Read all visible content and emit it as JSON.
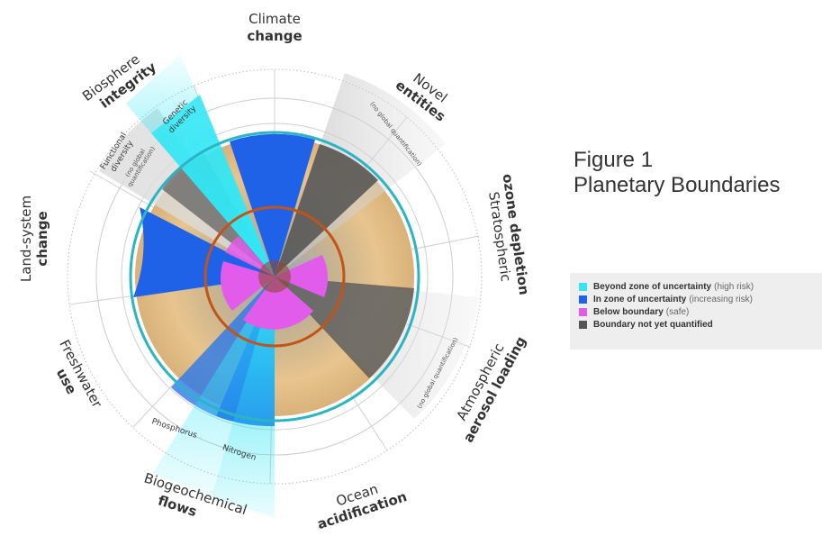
{
  "figure": {
    "number": "Figure 1",
    "title": "Planetary Boundaries"
  },
  "colors": {
    "beyond": "#33e6f5",
    "uncertainty": "#1f62e8",
    "safe": "#e25cec",
    "not_quantified": "#555555",
    "boundary_ring": "#c0541a",
    "outer_ring": "#2bb4c4"
  },
  "legend": [
    {
      "key": "beyond",
      "bold": "Beyond zone of uncertainty",
      "note": "(high risk)"
    },
    {
      "key": "uncertainty",
      "bold": "In zone of uncertainty",
      "note": "(increasing risk)"
    },
    {
      "key": "safe",
      "bold": "Below boundary",
      "note": "(safe)"
    },
    {
      "key": "not_quantified",
      "bold": "Boundary not yet quantified",
      "note": ""
    }
  ],
  "boundaries": {
    "climate_change": {
      "line1": "Climate",
      "line2": "change"
    },
    "novel_entities": {
      "line1": "Novel",
      "line2": "entities",
      "note": "(no global quantification)"
    },
    "ozone_depletion": {
      "line1": "Stratospheric",
      "line2": "ozone depletion"
    },
    "aerosol_loading": {
      "line1": "Atmospheric",
      "line2": "aerosol loading",
      "note": "(no global quantification)"
    },
    "ocean_acidification": {
      "line1": "Ocean",
      "line2": "acidification"
    },
    "biogeochemical_flows": {
      "line1": "Biogeochemical",
      "line2": "flows",
      "sub_a": "Phosphorus",
      "sub_b": "Nitrogen"
    },
    "freshwater_use": {
      "line1": "Freshwater",
      "line2": "use"
    },
    "land_system_change": {
      "line1": "Land-system",
      "line2": "change"
    },
    "biosphere_integrity": {
      "line1": "Biosphere",
      "line2": "integrity",
      "sub_a_1": "Genetic",
      "sub_a_2": "diversity",
      "sub_b_1": "Functional",
      "sub_b_2": "diversity",
      "sub_b_note_1": "(no global",
      "sub_b_note_2": "quantification)"
    }
  }
}
